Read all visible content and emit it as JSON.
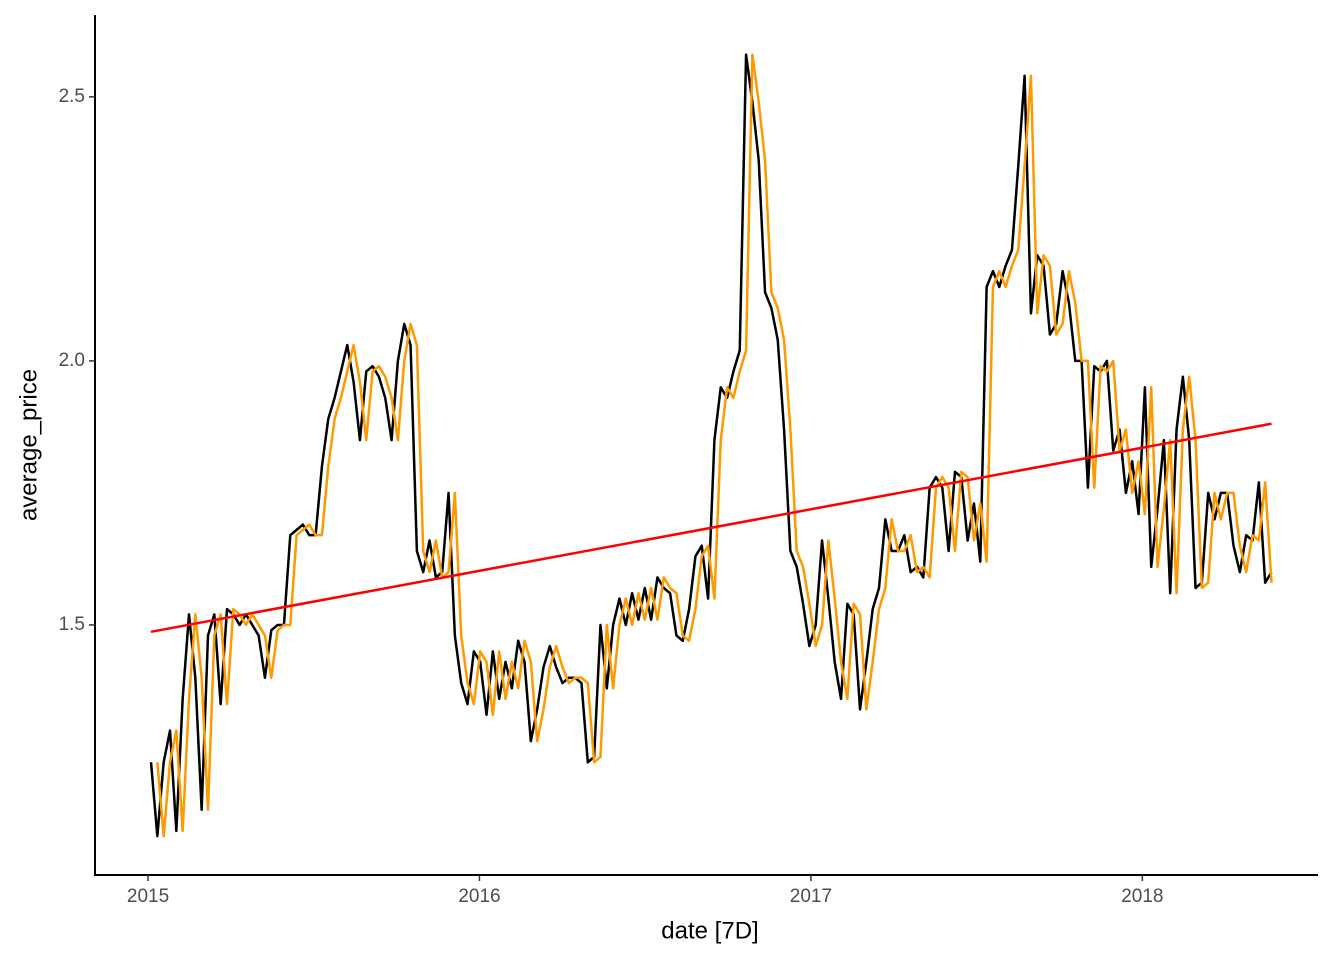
{
  "chart_data": {
    "type": "line",
    "x_label": "date [7D]",
    "y_label": "average_price",
    "x": [
      2015.009,
      2015.0281,
      2015.0472,
      2015.0663,
      2015.0854,
      2015.1045,
      2015.1236,
      2015.1427,
      2015.1618,
      2015.1809,
      2015.2,
      2015.2191,
      2015.2382,
      2015.2573,
      2015.2764,
      2015.2955,
      2015.3146,
      2015.3337,
      2015.3528,
      2015.3719,
      2015.391,
      2015.4101,
      2015.4292,
      2015.4483,
      2015.4674,
      2015.4865,
      2015.5056,
      2015.5247,
      2015.5438,
      2015.5629,
      2015.582,
      2015.6011,
      2015.6202,
      2015.6393,
      2015.6584,
      2015.6775,
      2015.6966,
      2015.7157,
      2015.7348,
      2015.7539,
      2015.773,
      2015.7921,
      2015.8112,
      2015.8303,
      2015.8494,
      2015.8685,
      2015.8876,
      2015.9067,
      2015.9258,
      2015.9449,
      2015.964,
      2015.9831,
      2016.0022,
      2016.0213,
      2016.0404,
      2016.0595,
      2016.0786,
      2016.0977,
      2016.1168,
      2016.1359,
      2016.155,
      2016.1741,
      2016.1932,
      2016.2123,
      2016.2314,
      2016.2505,
      2016.2696,
      2016.2887,
      2016.3078,
      2016.3269,
      2016.346,
      2016.3651,
      2016.3842,
      2016.4033,
      2016.4224,
      2016.4415,
      2016.4606,
      2016.4797,
      2016.4988,
      2016.5179,
      2016.537,
      2016.5561,
      2016.5752,
      2016.5943,
      2016.6134,
      2016.6325,
      2016.6516,
      2016.6707,
      2016.6898,
      2016.7089,
      2016.728,
      2016.7471,
      2016.7662,
      2016.7853,
      2016.8044,
      2016.8235,
      2016.8426,
      2016.8617,
      2016.8808,
      2016.8999,
      2016.919,
      2016.9381,
      2016.9572,
      2016.9763,
      2016.9954,
      2017.0145,
      2017.0336,
      2017.0527,
      2017.0718,
      2017.0909,
      2017.11,
      2017.1291,
      2017.1482,
      2017.1673,
      2017.1864,
      2017.2055,
      2017.2246,
      2017.2437,
      2017.2628,
      2017.2819,
      2017.301,
      2017.3201,
      2017.3392,
      2017.3583,
      2017.3774,
      2017.3965,
      2017.4156,
      2017.4347,
      2017.4538,
      2017.4729,
      2017.492,
      2017.5111,
      2017.5302,
      2017.5493,
      2017.5684,
      2017.5875,
      2017.6066,
      2017.6257,
      2017.6448,
      2017.6639,
      2017.683,
      2017.7021,
      2017.7212,
      2017.7403,
      2017.7594,
      2017.7785,
      2017.7976,
      2017.8167,
      2017.8358,
      2017.8549,
      2017.874,
      2017.8931,
      2017.9122,
      2017.9313,
      2017.9504,
      2017.9695,
      2017.9886,
      2018.0077,
      2018.0268,
      2018.0459,
      2018.065,
      2018.0841,
      2018.1032,
      2018.1223,
      2018.1414,
      2018.1605,
      2018.1796,
      2018.1987,
      2018.2178,
      2018.2369,
      2018.256,
      2018.2751,
      2018.2942,
      2018.3133,
      2018.3324,
      2018.3515,
      2018.3706,
      2018.3897
    ],
    "series": [
      {
        "color": "#000000",
        "values": [
          1.24,
          1.1,
          1.24,
          1.3,
          1.11,
          1.36,
          1.52,
          1.4,
          1.15,
          1.48,
          1.52,
          1.35,
          1.53,
          1.52,
          1.5,
          1.52,
          1.5,
          1.48,
          1.4,
          1.49,
          1.5,
          1.5,
          1.67,
          1.68,
          1.69,
          1.67,
          1.67,
          1.8,
          1.89,
          1.93,
          1.98,
          2.03,
          1.96,
          1.85,
          1.98,
          1.99,
          1.97,
          1.93,
          1.85,
          2.0,
          2.07,
          2.03,
          1.64,
          1.6,
          1.66,
          1.59,
          1.6,
          1.75,
          1.48,
          1.39,
          1.35,
          1.45,
          1.43,
          1.33,
          1.45,
          1.36,
          1.43,
          1.38,
          1.47,
          1.43,
          1.28,
          1.34,
          1.42,
          1.46,
          1.42,
          1.39,
          1.4,
          1.4,
          1.39,
          1.24,
          1.25,
          1.5,
          1.38,
          1.5,
          1.55,
          1.5,
          1.56,
          1.51,
          1.57,
          1.51,
          1.59,
          1.57,
          1.56,
          1.48,
          1.47,
          1.53,
          1.63,
          1.65,
          1.55,
          1.85,
          1.95,
          1.93,
          1.98,
          2.02,
          2.58,
          2.49,
          2.38,
          2.13,
          2.1,
          2.04,
          1.87,
          1.64,
          1.61,
          1.54,
          1.46,
          1.5,
          1.66,
          1.55,
          1.43,
          1.36,
          1.54,
          1.52,
          1.34,
          1.43,
          1.53,
          1.57,
          1.7,
          1.64,
          1.64,
          1.67,
          1.6,
          1.61,
          1.59,
          1.76,
          1.78,
          1.76,
          1.64,
          1.79,
          1.78,
          1.66,
          1.73,
          1.62,
          2.14,
          2.17,
          2.14,
          2.18,
          2.21,
          2.37,
          2.54,
          2.09,
          2.2,
          2.18,
          2.05,
          2.07,
          2.17,
          2.11,
          2.0,
          2.0,
          1.76,
          1.99,
          1.98,
          2.0,
          1.83,
          1.87,
          1.75,
          1.81,
          1.71,
          1.95,
          1.61,
          1.72,
          1.85,
          1.56,
          1.87,
          1.97,
          1.85,
          1.57,
          1.58,
          1.75,
          1.7,
          1.75,
          1.75,
          1.65,
          1.6,
          1.67,
          1.66,
          1.77,
          1.58,
          1.6
        ]
      },
      {
        "color": "#ff9900",
        "values": [
          null,
          1.24,
          1.1,
          1.24,
          1.3,
          1.11,
          1.36,
          1.52,
          1.4,
          1.15,
          1.48,
          1.52,
          1.35,
          1.53,
          1.52,
          1.5,
          1.52,
          1.5,
          1.48,
          1.4,
          1.49,
          1.5,
          1.5,
          1.67,
          1.68,
          1.69,
          1.67,
          1.67,
          1.8,
          1.89,
          1.93,
          1.98,
          2.03,
          1.96,
          1.85,
          1.98,
          1.99,
          1.97,
          1.93,
          1.85,
          2.0,
          2.07,
          2.03,
          1.64,
          1.6,
          1.66,
          1.59,
          1.6,
          1.75,
          1.48,
          1.39,
          1.35,
          1.45,
          1.43,
          1.33,
          1.45,
          1.36,
          1.43,
          1.38,
          1.47,
          1.43,
          1.28,
          1.34,
          1.42,
          1.46,
          1.42,
          1.39,
          1.4,
          1.4,
          1.39,
          1.24,
          1.25,
          1.5,
          1.38,
          1.5,
          1.55,
          1.5,
          1.56,
          1.51,
          1.57,
          1.51,
          1.59,
          1.57,
          1.56,
          1.48,
          1.47,
          1.53,
          1.63,
          1.65,
          1.55,
          1.85,
          1.95,
          1.93,
          1.98,
          2.02,
          2.58,
          2.49,
          2.38,
          2.13,
          2.1,
          2.04,
          1.87,
          1.64,
          1.61,
          1.54,
          1.46,
          1.5,
          1.66,
          1.55,
          1.43,
          1.36,
          1.54,
          1.52,
          1.34,
          1.43,
          1.53,
          1.57,
          1.7,
          1.64,
          1.64,
          1.67,
          1.6,
          1.61,
          1.59,
          1.76,
          1.78,
          1.76,
          1.64,
          1.79,
          1.78,
          1.66,
          1.73,
          1.62,
          2.14,
          2.17,
          2.14,
          2.18,
          2.21,
          2.37,
          2.54,
          2.09,
          2.2,
          2.18,
          2.05,
          2.07,
          2.17,
          2.11,
          2.0,
          2.0,
          1.76,
          1.99,
          1.98,
          2.0,
          1.83,
          1.87,
          1.75,
          1.81,
          1.71,
          1.95,
          1.61,
          1.72,
          1.85,
          1.56,
          1.87,
          1.97,
          1.85,
          1.57,
          1.58,
          1.75,
          1.7,
          1.75,
          1.75,
          1.65,
          1.6,
          1.67,
          1.66,
          1.77,
          1.58
        ]
      },
      {
        "color": "#ff0000",
        "x": [
          2015.009,
          2018.3897
        ],
        "values": [
          1.487,
          1.881
        ]
      }
    ],
    "xlim": [
      2014.84,
      2018.53
    ],
    "xticks": [
      2015,
      2016,
      2017,
      2018
    ],
    "ylim": [
      1.0265,
      2.655
    ],
    "yticks": [
      1.5,
      {
        "value": 2,
        "label": "2.0"
      },
      2.5
    ],
    "grid": false
  }
}
